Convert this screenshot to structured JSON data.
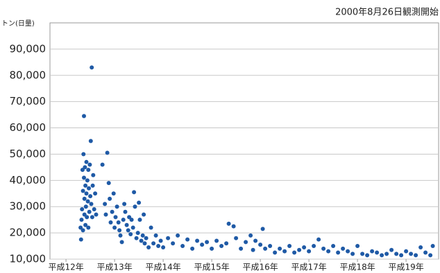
{
  "chart_data": {
    "type": "scatter",
    "title": "2000年8月26日観測開始",
    "y_label": "トン(日量)",
    "color": "#1f5aa6",
    "grid": true,
    "xlim": [
      11.67,
      19.67
    ],
    "ylim": [
      10000,
      100000
    ],
    "xticks": [
      {
        "value": 12,
        "label": "平成12年"
      },
      {
        "value": 13,
        "label": "平成13年"
      },
      {
        "value": 14,
        "label": "平成14年"
      },
      {
        "value": 15,
        "label": "平成15年"
      },
      {
        "value": 16,
        "label": "平成16年"
      },
      {
        "value": 17,
        "label": "平成17年"
      },
      {
        "value": 18,
        "label": "平成18年"
      },
      {
        "value": 19,
        "label": "平成19年"
      }
    ],
    "yticks": [
      {
        "value": 10000,
        "label": "10,000"
      },
      {
        "value": 20000,
        "label": "20,000"
      },
      {
        "value": 30000,
        "label": "30,000"
      },
      {
        "value": 40000,
        "label": "40,000"
      },
      {
        "value": 50000,
        "label": "50,000"
      },
      {
        "value": 60000,
        "label": "60,000"
      },
      {
        "value": 70000,
        "label": "70,000"
      },
      {
        "value": 80000,
        "label": "80,000"
      },
      {
        "value": 90000,
        "label": "90,000"
      }
    ],
    "x": [
      12.3,
      12.31,
      12.32,
      12.33,
      12.34,
      12.35,
      12.35,
      12.36,
      12.37,
      12.37,
      12.38,
      12.38,
      12.39,
      12.4,
      12.4,
      12.41,
      12.42,
      12.42,
      12.43,
      12.44,
      12.45,
      12.46,
      12.46,
      12.47,
      12.48,
      12.49,
      12.5,
      12.51,
      12.52,
      12.53,
      12.54,
      12.55,
      12.56,
      12.58,
      12.6,
      12.62,
      12.75,
      12.8,
      12.82,
      12.85,
      12.88,
      12.9,
      12.92,
      12.95,
      12.98,
      13.0,
      13.02,
      13.05,
      13.08,
      13.1,
      13.12,
      13.15,
      13.18,
      13.2,
      13.22,
      13.25,
      13.28,
      13.3,
      13.33,
      13.35,
      13.38,
      13.4,
      13.42,
      13.45,
      13.48,
      13.5,
      13.52,
      13.55,
      13.58,
      13.6,
      13.62,
      13.65,
      13.7,
      13.75,
      13.8,
      13.85,
      13.9,
      13.95,
      14.0,
      14.1,
      14.2,
      14.3,
      14.4,
      14.5,
      14.6,
      14.7,
      14.8,
      14.9,
      15.0,
      15.1,
      15.2,
      15.3,
      15.35,
      15.45,
      15.5,
      15.6,
      15.7,
      15.8,
      15.85,
      15.9,
      16.0,
      16.05,
      16.1,
      16.2,
      16.3,
      16.4,
      16.5,
      16.6,
      16.7,
      16.8,
      16.9,
      17.0,
      17.1,
      17.2,
      17.3,
      17.4,
      17.5,
      17.6,
      17.7,
      17.8,
      17.9,
      18.0,
      18.1,
      18.2,
      18.3,
      18.4,
      18.5,
      18.6,
      18.7,
      18.8,
      18.9,
      19.0,
      19.1,
      19.2,
      19.3,
      19.4,
      19.5,
      19.55
    ],
    "values": [
      22000,
      17500,
      25000,
      29000,
      44000,
      36000,
      21000,
      50000,
      64500,
      41000,
      33000,
      27000,
      45000,
      38000,
      23000,
      30000,
      47000,
      35000,
      26000,
      40000,
      32000,
      44000,
      22000,
      37000,
      28000,
      46000,
      34000,
      55000,
      31000,
      83000,
      26000,
      38000,
      42000,
      29000,
      35000,
      27000,
      46000,
      31000,
      27000,
      50500,
      39000,
      33000,
      24000,
      28000,
      35000,
      22000,
      26000,
      30000,
      24000,
      21000,
      19000,
      16500,
      25000,
      31000,
      28000,
      23000,
      21000,
      26000,
      19500,
      25000,
      22000,
      35500,
      30000,
      18000,
      20000,
      31500,
      25000,
      17000,
      19000,
      27000,
      16000,
      18000,
      14500,
      22000,
      16000,
      19000,
      15000,
      17000,
      14500,
      18000,
      16000,
      19000,
      15000,
      17500,
      14000,
      17000,
      15500,
      16500,
      14000,
      17000,
      15000,
      16000,
      23500,
      22500,
      18000,
      14000,
      16500,
      19000,
      13500,
      17000,
      15500,
      21500,
      14000,
      15000,
      12500,
      14000,
      13000,
      15000,
      12500,
      13500,
      14500,
      13000,
      15000,
      17500,
      14000,
      13000,
      15000,
      12500,
      14000,
      13000,
      12000,
      15000,
      12000,
      11500,
      13000,
      12500,
      11500,
      12000,
      13500,
      12000,
      11500,
      13000,
      12000,
      11500,
      14500,
      12500,
      11500,
      15000
    ]
  }
}
